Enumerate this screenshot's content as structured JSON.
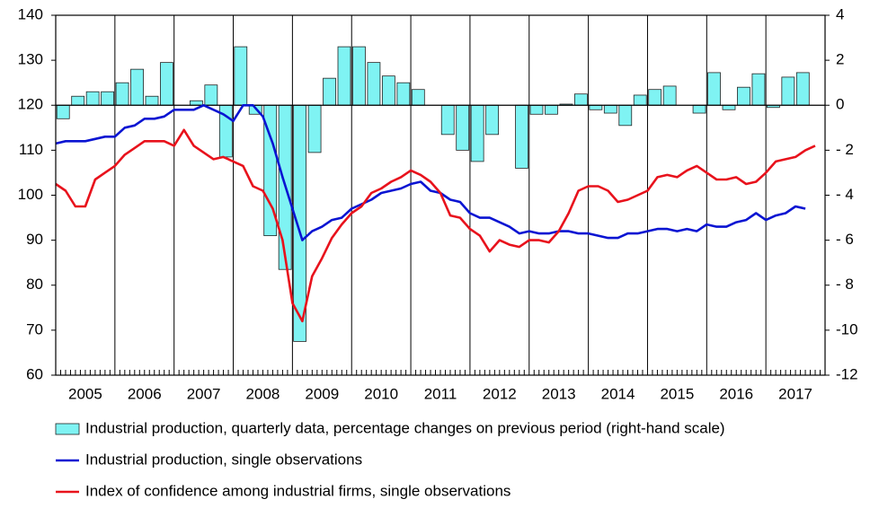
{
  "chart_data": {
    "type": "combo",
    "xlim": [
      2005,
      2018
    ],
    "xticks": [
      {
        "value": 2005.5,
        "label": "2005"
      },
      {
        "value": 2006.5,
        "label": "2006"
      },
      {
        "value": 2007.5,
        "label": "2007"
      },
      {
        "value": 2008.5,
        "label": "2008"
      },
      {
        "value": 2009.5,
        "label": "2009"
      },
      {
        "value": 2010.5,
        "label": "2010"
      },
      {
        "value": 2011.5,
        "label": "2011"
      },
      {
        "value": 2012.5,
        "label": "2012"
      },
      {
        "value": 2013.5,
        "label": "2013"
      },
      {
        "value": 2014.5,
        "label": "2014"
      },
      {
        "value": 2015.5,
        "label": "2015"
      },
      {
        "value": 2016.5,
        "label": "2016"
      },
      {
        "value": 2017.5,
        "label": "2017"
      }
    ],
    "xgrid": [
      2006,
      2007,
      2008,
      2009,
      2010,
      2011,
      2012,
      2013,
      2014,
      2015,
      2016,
      2017
    ],
    "ylim": [
      60,
      140
    ],
    "yticks": [
      60,
      70,
      80,
      90,
      100,
      110,
      120,
      130,
      140
    ],
    "y2lim": [
      -12,
      4
    ],
    "y2ticks": [
      -12,
      -10,
      {
        "value": -8,
        "label": "- 8"
      },
      {
        "value": -6,
        "label": "- 6"
      },
      {
        "value": -4,
        "label": "- 4"
      },
      {
        "value": -2,
        "label": "- 2"
      },
      0,
      2,
      4
    ],
    "grid": true,
    "legend": "bottom",
    "series": [
      {
        "name": "Industrial production, quarterly data, percentage changes on previous period (right-hand scale)",
        "type": "bar",
        "axis": "y2",
        "color": "#7ff3f3",
        "x": [
          2005.125,
          2005.375,
          2005.625,
          2005.875,
          2006.125,
          2006.375,
          2006.625,
          2006.875,
          2007.125,
          2007.375,
          2007.625,
          2007.875,
          2008.125,
          2008.375,
          2008.625,
          2008.875,
          2009.125,
          2009.375,
          2009.625,
          2009.875,
          2010.125,
          2010.375,
          2010.625,
          2010.875,
          2011.125,
          2011.375,
          2011.625,
          2011.875,
          2012.125,
          2012.375,
          2012.625,
          2012.875,
          2013.125,
          2013.375,
          2013.625,
          2013.875,
          2014.125,
          2014.375,
          2014.625,
          2014.875,
          2015.125,
          2015.375,
          2015.625,
          2015.875,
          2016.125,
          2016.375,
          2016.625,
          2016.875,
          2017.125,
          2017.375,
          2017.625
        ],
        "values": [
          -0.6,
          0.4,
          0.6,
          0.6,
          1.0,
          1.6,
          0.4,
          1.9,
          0.0,
          0.2,
          0.9,
          -2.3,
          2.6,
          -0.4,
          -5.8,
          -7.3,
          -10.5,
          -2.1,
          1.2,
          2.6,
          2.6,
          1.9,
          1.3,
          1.0,
          0.7,
          0.0,
          -1.3,
          -2.0,
          -2.5,
          -1.3,
          0.0,
          -2.8,
          -0.4,
          -0.4,
          0.05,
          0.5,
          -0.2,
          -0.35,
          -0.9,
          0.45,
          0.7,
          0.85,
          0.0,
          -0.35,
          1.45,
          -0.2,
          0.8,
          1.4,
          -0.1,
          1.25,
          1.45
        ]
      },
      {
        "name": "Industrial production, single observations",
        "type": "line",
        "color": "#0a14d2",
        "x": [
          2005,
          2005.167,
          2005.333,
          2005.5,
          2005.667,
          2005.833,
          2006,
          2006.167,
          2006.333,
          2006.5,
          2006.667,
          2006.833,
          2007,
          2007.167,
          2007.333,
          2007.5,
          2007.667,
          2007.833,
          2008,
          2008.167,
          2008.333,
          2008.5,
          2008.667,
          2008.833,
          2009,
          2009.167,
          2009.333,
          2009.5,
          2009.667,
          2009.833,
          2010,
          2010.167,
          2010.333,
          2010.5,
          2010.667,
          2010.833,
          2011,
          2011.167,
          2011.333,
          2011.5,
          2011.667,
          2011.833,
          2012,
          2012.167,
          2012.333,
          2012.5,
          2012.667,
          2012.833,
          2013,
          2013.167,
          2013.333,
          2013.5,
          2013.667,
          2013.833,
          2014,
          2014.167,
          2014.333,
          2014.5,
          2014.667,
          2014.833,
          2015,
          2015.167,
          2015.333,
          2015.5,
          2015.667,
          2015.833,
          2016,
          2016.167,
          2016.333,
          2016.5,
          2016.667,
          2016.833,
          2017,
          2017.167,
          2017.333,
          2017.5,
          2017.667,
          2017.833
        ],
        "values": [
          111.5,
          112,
          112,
          112,
          112.5,
          113,
          113,
          115,
          115.5,
          117,
          117,
          117.5,
          119,
          119,
          119,
          120,
          119,
          118,
          116.5,
          120,
          120,
          117.5,
          111.5,
          104,
          97,
          90,
          92,
          93,
          94.5,
          95,
          97,
          98,
          99,
          100.5,
          101,
          101.5,
          102.5,
          103,
          101,
          100.5,
          99,
          98.5,
          96,
          95,
          95,
          94,
          93,
          91.5,
          92,
          91.5,
          91.5,
          92,
          92,
          91.5,
          91.5,
          91,
          90.5,
          90.5,
          91.5,
          91.5,
          92,
          92.5,
          92.5,
          92,
          92.5,
          92,
          93.5,
          93,
          93,
          94,
          94.5,
          96,
          94.5,
          95.5,
          96,
          97.5,
          97,
          null
        ]
      },
      {
        "name": "Index of confidence among industrial firms, single observations",
        "type": "line",
        "color": "#e8121c",
        "x": [
          2005,
          2005.167,
          2005.333,
          2005.5,
          2005.667,
          2005.833,
          2006,
          2006.167,
          2006.333,
          2006.5,
          2006.667,
          2006.833,
          2007,
          2007.167,
          2007.333,
          2007.5,
          2007.667,
          2007.833,
          2008,
          2008.167,
          2008.333,
          2008.5,
          2008.667,
          2008.833,
          2009,
          2009.167,
          2009.333,
          2009.5,
          2009.667,
          2009.833,
          2010,
          2010.167,
          2010.333,
          2010.5,
          2010.667,
          2010.833,
          2011,
          2011.167,
          2011.333,
          2011.5,
          2011.667,
          2011.833,
          2012,
          2012.167,
          2012.333,
          2012.5,
          2012.667,
          2012.833,
          2013,
          2013.167,
          2013.333,
          2013.5,
          2013.667,
          2013.833,
          2014,
          2014.167,
          2014.333,
          2014.5,
          2014.667,
          2014.833,
          2015,
          2015.167,
          2015.333,
          2015.5,
          2015.667,
          2015.833,
          2016,
          2016.167,
          2016.333,
          2016.5,
          2016.667,
          2016.833,
          2017,
          2017.167,
          2017.333,
          2017.5,
          2017.667,
          2017.833
        ],
        "values": [
          102.5,
          101,
          97.5,
          97.5,
          103.5,
          105,
          106.5,
          109,
          110.5,
          112,
          112,
          112,
          111,
          114.5,
          111,
          109.5,
          108,
          108.5,
          107.5,
          106.5,
          102,
          101,
          97,
          90,
          76,
          72,
          82,
          86,
          90.5,
          93.5,
          96,
          97.5,
          100.5,
          101.5,
          103,
          104,
          105.5,
          104.5,
          103,
          100.5,
          95.5,
          95,
          92.5,
          91,
          87.5,
          90,
          89,
          88.5,
          90,
          90,
          89.5,
          92,
          96,
          101,
          102,
          102,
          101,
          98.5,
          99,
          100,
          101,
          104,
          104.5,
          104,
          105.5,
          106.5,
          105,
          103.5,
          103.5,
          104,
          102.5,
          103,
          105,
          107.5,
          108,
          108.5,
          110,
          111
        ]
      }
    ]
  }
}
